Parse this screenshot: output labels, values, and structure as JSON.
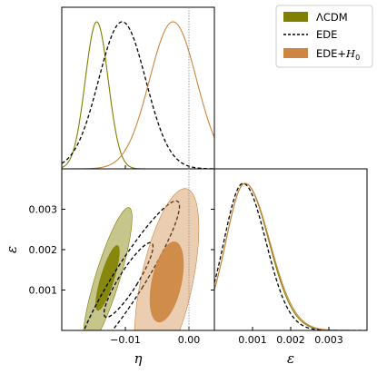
{
  "chart_data": {
    "type": "corner",
    "parameters": [
      {
        "id": "eta",
        "label": "η",
        "range": [
          -0.02,
          0.004
        ],
        "ticks": [
          {
            "v": -0.01,
            "label": "−0.01"
          },
          {
            "v": 0.0,
            "label": "0.00"
          }
        ]
      },
      {
        "id": "eps",
        "label": "ε",
        "range": [
          0.0,
          0.004
        ],
        "ticks_y": [
          {
            "v": 0.001,
            "label": "0.001"
          },
          {
            "v": 0.002,
            "label": "0.002"
          },
          {
            "v": 0.003,
            "label": "0.003"
          }
        ],
        "ticks_x": [
          {
            "v": 0.001,
            "label": "0.001"
          },
          {
            "v": 0.002,
            "label": "0.002"
          },
          {
            "v": 0.003,
            "label": "0.003"
          }
        ]
      }
    ],
    "reference_lines": [
      {
        "param": "eta",
        "value": 0.0,
        "style": "dotted"
      }
    ],
    "legend": {
      "position": "top-right",
      "entries": [
        {
          "label": "ΛCDM",
          "color": "#7f7f00",
          "style": "patch"
        },
        {
          "label": "EDE",
          "color": "#000000",
          "style": "dashed"
        },
        {
          "label": "EDE+H0",
          "label_main": "EDE+",
          "label_math": "H",
          "label_sub": "0",
          "color": "#cd853f",
          "style": "patch"
        }
      ]
    },
    "series": [
      {
        "name": "ΛCDM",
        "color": "#7f7f00",
        "line": "solid",
        "eta_marginal": {
          "mean": -0.0145,
          "sd": 0.0018
        },
        "eps_marginal": {
          "mode": 0.0008,
          "sd_left": 0.0005,
          "sd_right": 0.00063
        },
        "joint_2d": {
          "center": [
            -0.0128,
            0.0013
          ],
          "levels": [
            {
              "sigma": 2,
              "rx": 0.0035,
              "ry": 0.00135,
              "angle_deg": 73,
              "opacity": 0.45
            },
            {
              "sigma": 1,
              "rx": 0.0019,
              "ry": 0.00062,
              "angle_deg": 73,
              "opacity": 0.9
            }
          ]
        }
      },
      {
        "name": "EDE",
        "color": "#000000",
        "line": "dashed",
        "eta_marginal": {
          "mean": -0.0105,
          "sd": 0.0037
        },
        "eps_marginal": {
          "mode": 0.00075,
          "sd_left": 0.0005,
          "sd_right": 0.0006
        },
        "joint_2d": {
          "center": [
            -0.0095,
            0.00125
          ],
          "levels": [
            {
              "sigma": 2,
              "rx": 0.0045,
              "ry": 0.0017,
              "angle_deg": 58,
              "opacity": 0
            },
            {
              "sigma": 1,
              "rx": 0.0027,
              "ry": 0.0008,
              "angle_deg": 58,
              "opacity": 0
            }
          ]
        }
      },
      {
        "name": "EDE+H0",
        "color": "#cd853f",
        "line": "solid",
        "eta_marginal": {
          "mean": -0.0025,
          "sd": 0.0037
        },
        "eps_marginal": {
          "mode": 0.0008,
          "sd_left": 0.0005,
          "sd_right": 0.00065
        },
        "joint_2d": {
          "center": [
            -0.0035,
            0.0012
          ],
          "levels": [
            {
              "sigma": 2,
              "rx": 0.0074,
              "ry": 0.00175,
              "angle_deg": 78,
              "opacity": 0.4
            },
            {
              "sigma": 1,
              "rx": 0.0042,
              "ry": 0.00075,
              "angle_deg": 78,
              "opacity": 0.9
            }
          ]
        }
      }
    ]
  }
}
